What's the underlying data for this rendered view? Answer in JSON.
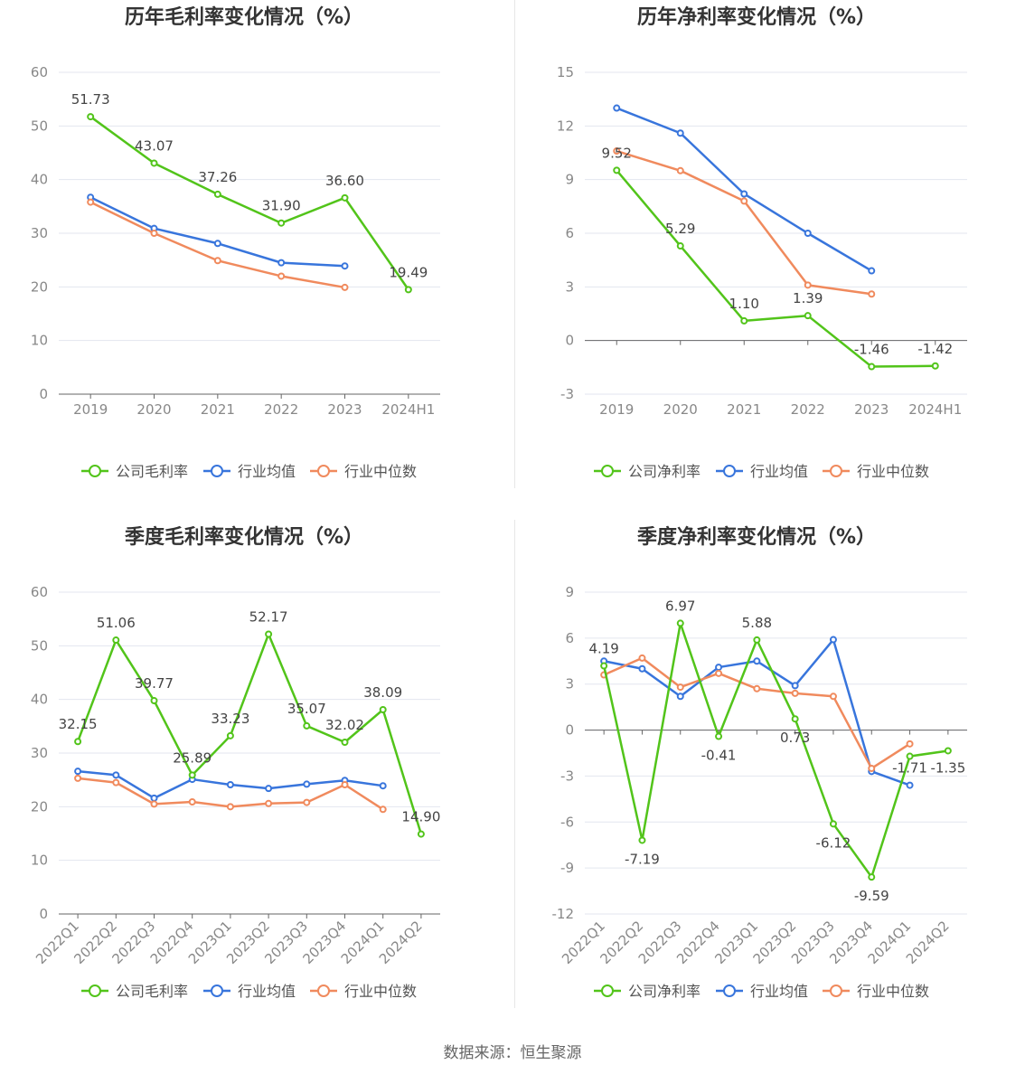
{
  "source_label": "数据来源：恒生聚源",
  "legend_labels": {
    "gross": [
      "公司毛利率",
      "行业均值",
      "行业中位数"
    ],
    "net": [
      "公司净利率",
      "行业均值",
      "行业中位数"
    ]
  },
  "series_colors": [
    "#52c41a",
    "#3875dc",
    "#f08a5d"
  ],
  "chart_data": [
    {
      "type": "line",
      "title": "历年毛利率变化情况（%）",
      "categories": [
        "2019",
        "2020",
        "2021",
        "2022",
        "2023",
        "2024H1"
      ],
      "ylim": [
        0,
        60
      ],
      "yticks": [
        0,
        10,
        20,
        30,
        40,
        50,
        60
      ],
      "grid": true,
      "legend": "bottom",
      "series": [
        {
          "name": "公司毛利率",
          "values": [
            51.73,
            43.07,
            37.26,
            31.9,
            36.6,
            19.49
          ],
          "labels": [
            "51.73",
            "43.07",
            "37.26",
            "31.90",
            "36.60",
            "19.49"
          ]
        },
        {
          "name": "行业均值",
          "values": [
            36.7,
            30.9,
            28.1,
            24.5,
            23.9,
            null
          ]
        },
        {
          "name": "行业中位数",
          "values": [
            35.8,
            30.0,
            24.9,
            22.0,
            19.9,
            null
          ]
        }
      ]
    },
    {
      "type": "line",
      "title": "历年净利率变化情况（%）",
      "categories": [
        "2019",
        "2020",
        "2021",
        "2022",
        "2023",
        "2024H1"
      ],
      "ylim": [
        -3,
        15
      ],
      "yticks": [
        -3,
        0,
        3,
        6,
        9,
        12,
        15
      ],
      "grid": true,
      "legend": "bottom",
      "series": [
        {
          "name": "公司净利率",
          "values": [
            9.52,
            5.29,
            1.1,
            1.39,
            -1.46,
            -1.42
          ],
          "labels": [
            "9.52",
            "5.29",
            "1.10",
            "1.39",
            "-1.46",
            "-1.42"
          ]
        },
        {
          "name": "行业均值",
          "values": [
            13.0,
            11.6,
            8.2,
            6.0,
            3.9,
            null
          ]
        },
        {
          "name": "行业中位数",
          "values": [
            10.6,
            9.5,
            7.8,
            3.1,
            2.6,
            null
          ]
        }
      ]
    },
    {
      "type": "line",
      "title": "季度毛利率变化情况（%）",
      "categories": [
        "2022Q1",
        "2022Q2",
        "2022Q3",
        "2022Q4",
        "2023Q1",
        "2023Q2",
        "2023Q3",
        "2023Q4",
        "2024Q1",
        "2024Q2"
      ],
      "ylim": [
        0,
        60
      ],
      "yticks": [
        0,
        10,
        20,
        30,
        40,
        50,
        60
      ],
      "grid": true,
      "legend": "bottom",
      "series": [
        {
          "name": "公司毛利率",
          "values": [
            32.15,
            51.06,
            39.77,
            25.89,
            33.23,
            52.17,
            35.07,
            32.02,
            38.09,
            14.9
          ],
          "labels": [
            "32.15",
            "51.06",
            "39.77",
            "25.89",
            "33.23",
            "52.17",
            "35.07",
            "32.02",
            "38.09",
            "14.90"
          ]
        },
        {
          "name": "行业均值",
          "values": [
            26.6,
            25.9,
            21.6,
            25.1,
            24.1,
            23.4,
            24.2,
            24.9,
            23.9,
            null
          ]
        },
        {
          "name": "行业中位数",
          "values": [
            25.3,
            24.5,
            20.5,
            20.9,
            20.0,
            20.6,
            20.8,
            24.1,
            19.5,
            null
          ]
        }
      ]
    },
    {
      "type": "line",
      "title": "季度净利率变化情况（%）",
      "categories": [
        "2022Q1",
        "2022Q2",
        "2022Q3",
        "2022Q4",
        "2023Q1",
        "2023Q2",
        "2023Q3",
        "2023Q4",
        "2024Q1",
        "2024Q2"
      ],
      "ylim": [
        -12,
        9
      ],
      "yticks": [
        -12,
        -9,
        -6,
        -3,
        0,
        3,
        6,
        9
      ],
      "grid": true,
      "legend": "bottom",
      "series": [
        {
          "name": "公司净利率",
          "values": [
            4.19,
            -7.19,
            6.97,
            -0.41,
            5.88,
            0.73,
            -6.12,
            -9.59,
            -1.71,
            -1.35
          ],
          "labels": [
            "4.19",
            "-7.19",
            "6.97",
            "-0.41",
            "5.88",
            "0.73",
            "-6.12",
            "-9.59",
            "-1.71",
            "-1.35"
          ]
        },
        {
          "name": "行业均值",
          "values": [
            4.5,
            4.0,
            2.2,
            4.1,
            4.5,
            2.9,
            5.9,
            -2.7,
            -3.6,
            null
          ]
        },
        {
          "name": "行业中位数",
          "values": [
            3.6,
            4.7,
            2.8,
            3.7,
            2.7,
            2.4,
            2.2,
            -2.5,
            -0.9,
            null
          ]
        }
      ]
    }
  ]
}
